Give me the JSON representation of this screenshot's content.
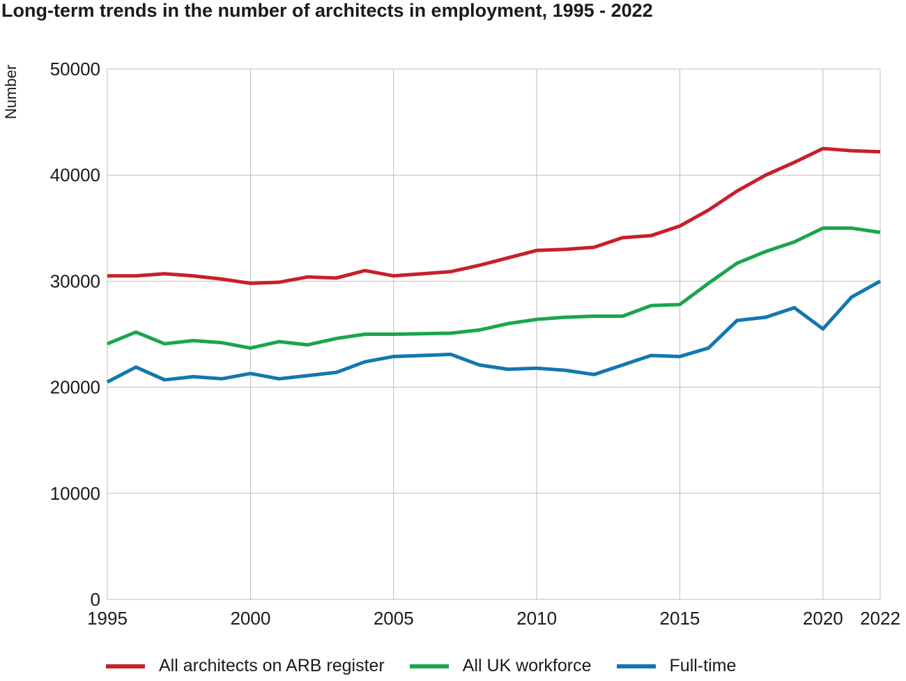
{
  "title": "Long-term trends in the number of architects in employment, 1995 - 2022",
  "chart_data": {
    "type": "line",
    "title": "Long-term trends in the number of architects in employment, 1995 - 2022",
    "ylabel": "Number",
    "xlabel": "",
    "ylim": [
      0,
      50000
    ],
    "xlim": [
      1995,
      2022
    ],
    "grid": true,
    "legend_position": "bottom",
    "y_ticks": [
      "0",
      "10000",
      "20000",
      "30000",
      "40000",
      "50000"
    ],
    "x_ticks": [
      "1995",
      "2000",
      "2005",
      "2010",
      "2015",
      "2020",
      "2022"
    ],
    "x": [
      1995,
      1996,
      1997,
      1998,
      1999,
      2000,
      2001,
      2002,
      2003,
      2004,
      2005,
      2006,
      2007,
      2008,
      2009,
      2010,
      2011,
      2012,
      2013,
      2014,
      2015,
      2016,
      2017,
      2018,
      2019,
      2020,
      2021,
      2022
    ],
    "series": [
      {
        "name": "All architects on ARB register",
        "color": "#c8202a",
        "values": [
          30500,
          30500,
          30700,
          30500,
          30200,
          29800,
          29900,
          30400,
          30300,
          31000,
          30500,
          30700,
          30900,
          31500,
          32200,
          32900,
          33000,
          33200,
          34100,
          34300,
          35200,
          36700,
          38500,
          40000,
          41200,
          42500,
          42300,
          42200
        ]
      },
      {
        "name": "All UK workforce",
        "color": "#1aa54d",
        "values": [
          24100,
          25200,
          24100,
          24400,
          24200,
          23700,
          24300,
          24000,
          24600,
          25000,
          25000,
          25050,
          25100,
          25400,
          26000,
          26400,
          26600,
          26700,
          26700,
          27700,
          27800,
          29800,
          31700,
          32800,
          33700,
          35000,
          35000,
          34600
        ]
      },
      {
        "name": "Full-time",
        "color": "#1277ae",
        "values": [
          20500,
          21900,
          20700,
          21000,
          20800,
          21300,
          20800,
          21100,
          21400,
          22400,
          22900,
          23000,
          23100,
          22100,
          21700,
          21800,
          21600,
          21200,
          22100,
          23000,
          22900,
          23700,
          26300,
          26600,
          27500,
          25500,
          28500,
          30000
        ]
      }
    ]
  }
}
